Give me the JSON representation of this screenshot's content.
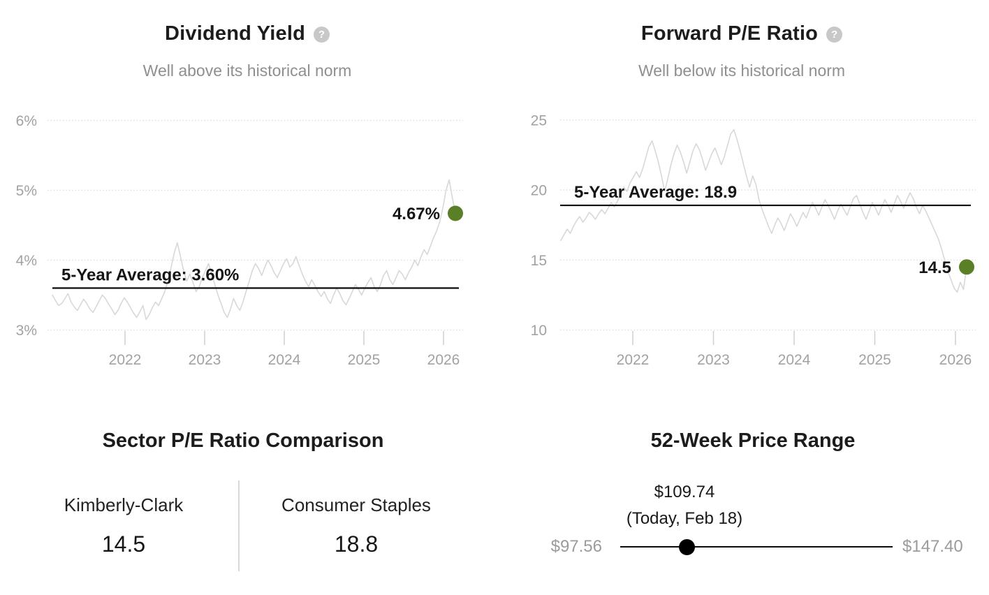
{
  "colors": {
    "accent_green": "#5a7f27",
    "series_gray": "#d8d8d8",
    "average_black": "#0b0b0b",
    "axis_gray": "#a2a2a2",
    "help_icon_gray": "#c8c8c8"
  },
  "help_glyph": "?",
  "chart_data": [
    {
      "type": "line",
      "id": "dividend_yield",
      "title": "Dividend Yield",
      "subtitle": "Well above its historical norm",
      "legend_position": "none",
      "grid": "dotted-horizontal",
      "ylim": [
        3,
        6
      ],
      "y_ticks": [
        {
          "label": "6%",
          "value": 6
        },
        {
          "label": "5%",
          "value": 5
        },
        {
          "label": "4%",
          "value": 4
        },
        {
          "label": "3%",
          "value": 3
        }
      ],
      "x_ticks": [
        {
          "label": "2022",
          "value": 2022
        },
        {
          "label": "2023",
          "value": 2023
        },
        {
          "label": "2024",
          "value": 2024
        },
        {
          "label": "2025",
          "value": 2025
        },
        {
          "label": "2026",
          "value": 2026
        }
      ],
      "average": {
        "label": "5-Year Average: 3.60%",
        "value": 3.6
      },
      "current": {
        "label": "4.67%",
        "value": 4.67
      },
      "x_range": [
        2021.1,
        2026.18
      ],
      "values": [
        3.5,
        3.42,
        3.35,
        3.38,
        3.45,
        3.52,
        3.4,
        3.33,
        3.28,
        3.36,
        3.44,
        3.38,
        3.3,
        3.25,
        3.33,
        3.42,
        3.5,
        3.45,
        3.37,
        3.3,
        3.22,
        3.28,
        3.38,
        3.46,
        3.4,
        3.32,
        3.24,
        3.18,
        3.26,
        3.35,
        3.15,
        3.22,
        3.32,
        3.4,
        3.35,
        3.45,
        3.55,
        3.7,
        3.9,
        4.1,
        4.25,
        4.05,
        3.85,
        3.7,
        3.8,
        3.68,
        3.55,
        3.62,
        3.75,
        3.85,
        3.95,
        3.8,
        3.65,
        3.5,
        3.38,
        3.25,
        3.18,
        3.3,
        3.45,
        3.35,
        3.28,
        3.4,
        3.55,
        3.7,
        3.85,
        3.95,
        3.88,
        3.78,
        3.9,
        4.0,
        3.92,
        3.82,
        3.75,
        3.85,
        3.95,
        4.02,
        3.9,
        3.95,
        4.05,
        3.92,
        3.8,
        3.7,
        3.62,
        3.72,
        3.64,
        3.55,
        3.48,
        3.55,
        3.45,
        3.38,
        3.5,
        3.6,
        3.52,
        3.42,
        3.36,
        3.45,
        3.55,
        3.65,
        3.58,
        3.5,
        3.6,
        3.68,
        3.75,
        3.62,
        3.55,
        3.65,
        3.78,
        3.85,
        3.72,
        3.65,
        3.75,
        3.85,
        3.8,
        3.72,
        3.82,
        3.9,
        4.0,
        3.92,
        4.05,
        4.15,
        4.08,
        4.2,
        4.32,
        4.42,
        4.55,
        4.75,
        5.0,
        5.15,
        4.9,
        4.67
      ]
    },
    {
      "type": "line",
      "id": "forward_pe",
      "title": "Forward P/E Ratio",
      "subtitle": "Well below its historical norm",
      "legend_position": "none",
      "grid": "dotted-horizontal",
      "ylim": [
        10,
        25
      ],
      "y_ticks": [
        {
          "label": "25",
          "value": 25
        },
        {
          "label": "20",
          "value": 20
        },
        {
          "label": "15",
          "value": 15
        },
        {
          "label": "10",
          "value": 10
        }
      ],
      "x_ticks": [
        {
          "label": "2022",
          "value": 2022
        },
        {
          "label": "2023",
          "value": 2023
        },
        {
          "label": "2024",
          "value": 2024
        },
        {
          "label": "2025",
          "value": 2025
        },
        {
          "label": "2026",
          "value": 2026
        }
      ],
      "average": {
        "label": "5-Year Average: 18.9",
        "value": 18.9
      },
      "current": {
        "label": "14.5",
        "value": 14.5
      },
      "x_range": [
        2021.1,
        2026.18
      ],
      "values": [
        16.4,
        16.8,
        17.2,
        16.9,
        17.4,
        17.8,
        18.1,
        17.7,
        18.0,
        18.4,
        18.2,
        17.9,
        18.3,
        18.6,
        18.3,
        18.7,
        19.1,
        18.8,
        19.2,
        19.7,
        20.2,
        19.9,
        20.5,
        20.9,
        21.3,
        20.9,
        21.5,
        22.3,
        23.1,
        23.5,
        22.8,
        22.0,
        21.0,
        19.9,
        20.8,
        21.8,
        22.6,
        23.2,
        22.7,
        22.0,
        21.2,
        22.0,
        22.8,
        23.3,
        22.9,
        22.2,
        21.4,
        22.0,
        22.6,
        23.0,
        22.4,
        21.8,
        22.4,
        23.2,
        24.0,
        24.3,
        23.6,
        22.8,
        21.9,
        21.0,
        20.2,
        21.0,
        20.4,
        19.3,
        18.6,
        18.0,
        17.4,
        16.9,
        17.5,
        18.0,
        17.6,
        17.1,
        17.7,
        18.3,
        17.9,
        17.4,
        17.9,
        18.4,
        18.0,
        18.6,
        19.1,
        18.7,
        18.2,
        18.8,
        19.3,
        18.9,
        18.4,
        17.9,
        18.5,
        19.0,
        18.6,
        18.2,
        18.8,
        19.4,
        19.6,
        19.0,
        18.4,
        17.9,
        18.5,
        19.1,
        18.7,
        18.2,
        18.8,
        19.3,
        18.9,
        18.4,
        19.0,
        19.6,
        19.2,
        18.7,
        19.3,
        19.8,
        19.4,
        18.8,
        18.3,
        18.9,
        18.5,
        18.0,
        17.5,
        17.0,
        16.5,
        15.8,
        15.0,
        14.2,
        13.6,
        13.0,
        12.7,
        13.4,
        12.9,
        14.5
      ]
    },
    {
      "type": "table",
      "id": "sector_comparison",
      "title": "Sector P/E Ratio Comparison",
      "columns": [
        {
          "label": "Kimberly-Clark",
          "value": "14.5"
        },
        {
          "label": "Consumer Staples",
          "value": "18.8"
        }
      ]
    },
    {
      "type": "range",
      "id": "price_range",
      "title": "52-Week Price Range",
      "min_label": "$97.56",
      "max_label": "$147.40",
      "current_label": "$109.74",
      "current_note": "(Today, Feb 18)",
      "min": 97.56,
      "max": 147.4,
      "current": 109.74
    }
  ]
}
